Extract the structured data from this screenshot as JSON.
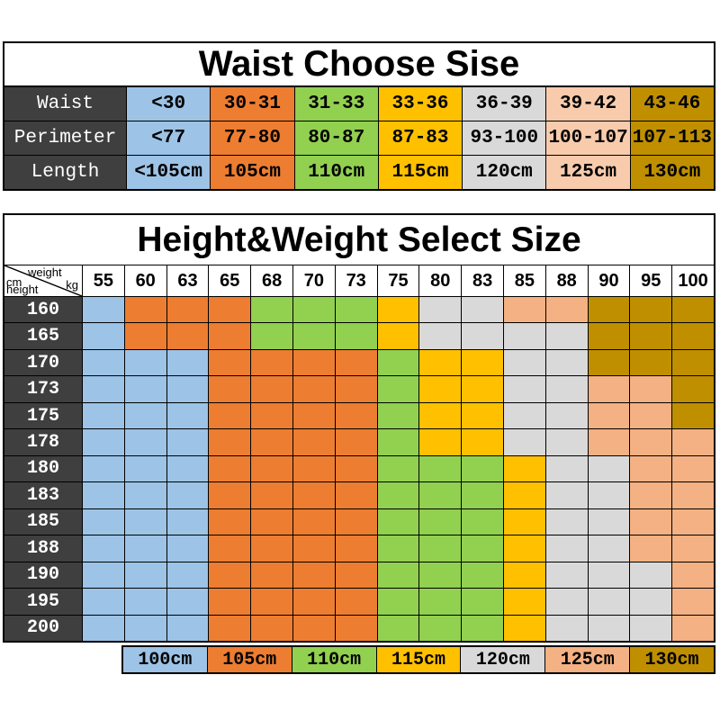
{
  "colors": {
    "header_dark": "#3F3F3F",
    "grid_line": "#000000",
    "text_light": "#FFFFFF",
    "text_dark": "#000000",
    "codes": {
      "b": "#9DC3E6",
      "o": "#ED7D31",
      "g": "#92D050",
      "y": "#FFC000",
      "a": "#D9D9D9",
      "p": "#F4B183",
      "pl": "#F8CBAD",
      "d": "#BF8F00"
    }
  },
  "chart_data": [
    {
      "type": "table",
      "title": "Waist Choose Sise",
      "row_headers": [
        "Waist",
        "Perimeter",
        "Length"
      ],
      "column_colors": [
        "b",
        "o",
        "g",
        "y",
        "a",
        "pl",
        "d"
      ],
      "rows": [
        [
          "<30",
          "30-31",
          "31-33",
          "33-36",
          "36-39",
          "39-42",
          "43-46"
        ],
        [
          "<77",
          "77-80",
          "80-87",
          "87-83",
          "93-100",
          "100-107",
          "107-113"
        ],
        [
          "<105cm",
          "105cm",
          "110cm",
          "115cm",
          "120cm",
          "125cm",
          "130cm"
        ]
      ]
    },
    {
      "type": "heatmap",
      "title": "Height&Weight Select Size",
      "corner": {
        "top": "weight",
        "top_sub": "kg",
        "bottom": "cm",
        "bottom_sub": "height"
      },
      "x": [
        "55",
        "60",
        "63",
        "65",
        "68",
        "70",
        "73",
        "75",
        "80",
        "83",
        "85",
        "88",
        "90",
        "95",
        "100"
      ],
      "y": [
        "160",
        "165",
        "170",
        "173",
        "175",
        "178",
        "180",
        "183",
        "185",
        "188",
        "190",
        "195",
        "200"
      ],
      "cells": [
        "b o o o g g g y a a p p d d d",
        "b o o o g g g y a a a a d d d",
        "b b b o o o o g y y a a d d d",
        "b b b o o o o g y y a a p p d",
        "b b b o o o o g y y a a p p d",
        "b b b o o o o g y y a a p p p",
        "b b b o o o o g g g y a a p p",
        "b b b o o o o g g g y a a p p",
        "b b b o o o o g g g y a a p p",
        "b b b o o o o g g g y a a p p",
        "b b b o o o o g g g y a a a p",
        "b b b o o o o g g g y a a a p",
        "b b b o o o o g g g y a a a p"
      ],
      "legend": [
        {
          "label": "100cm",
          "color": "b"
        },
        {
          "label": "105cm",
          "color": "o"
        },
        {
          "label": "110cm",
          "color": "g"
        },
        {
          "label": "115cm",
          "color": "y"
        },
        {
          "label": "120cm",
          "color": "a"
        },
        {
          "label": "125cm",
          "color": "p"
        },
        {
          "label": "130cm",
          "color": "d"
        }
      ],
      "legend_position": "bottom"
    }
  ]
}
